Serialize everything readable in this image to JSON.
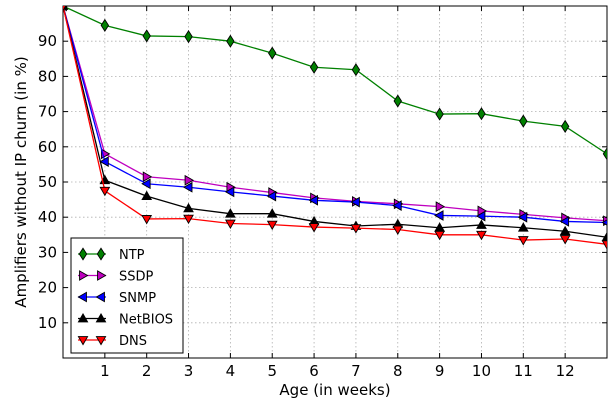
{
  "chart_data": {
    "type": "line",
    "xlabel": "Age (in weeks)",
    "ylabel": "Amplifiers without IP churn (in %)",
    "xlim": [
      0,
      13
    ],
    "ylim": [
      0,
      100
    ],
    "xticks": [
      1,
      2,
      3,
      4,
      5,
      6,
      7,
      8,
      9,
      10,
      11,
      12
    ],
    "yticks": [
      10,
      20,
      30,
      40,
      50,
      60,
      70,
      80,
      90
    ],
    "grid": true,
    "legend_position": "bottom-left",
    "x": [
      0,
      1,
      2,
      3,
      4,
      5,
      6,
      7,
      8,
      9,
      10,
      11,
      12,
      13
    ],
    "series": [
      {
        "name": "NTP",
        "color": "#008000",
        "marker": "diamond",
        "values": [
          100,
          94.5,
          91.5,
          91.3,
          90.0,
          86.6,
          82.6,
          81.9,
          73.0,
          69.3,
          69.4,
          67.3,
          65.8,
          58.0
        ]
      },
      {
        "name": "SSDP",
        "color": "#bf00bf",
        "marker": "triangle-right",
        "values": [
          100,
          58.0,
          51.5,
          50.5,
          48.5,
          47.0,
          45.5,
          44.5,
          43.8,
          43.0,
          41.8,
          40.8,
          39.8,
          39.0
        ]
      },
      {
        "name": "SNMP",
        "color": "#0000ff",
        "marker": "triangle-left",
        "values": [
          100,
          55.8,
          49.5,
          48.5,
          47.2,
          46.0,
          44.8,
          44.3,
          43.3,
          40.5,
          40.3,
          40.0,
          38.8,
          38.5
        ]
      },
      {
        "name": "NetBIOS",
        "color": "#000000",
        "marker": "triangle-up",
        "values": [
          100,
          50.5,
          46.0,
          42.5,
          41.0,
          41.0,
          38.8,
          37.5,
          38.0,
          37.0,
          37.8,
          37.0,
          36.0,
          34.3
        ]
      },
      {
        "name": "DNS",
        "color": "#ff0000",
        "marker": "triangle-down",
        "values": [
          100,
          47.5,
          39.5,
          39.6,
          38.2,
          37.9,
          37.2,
          36.9,
          36.5,
          35.0,
          35.0,
          33.5,
          33.8,
          32.3
        ]
      }
    ]
  }
}
